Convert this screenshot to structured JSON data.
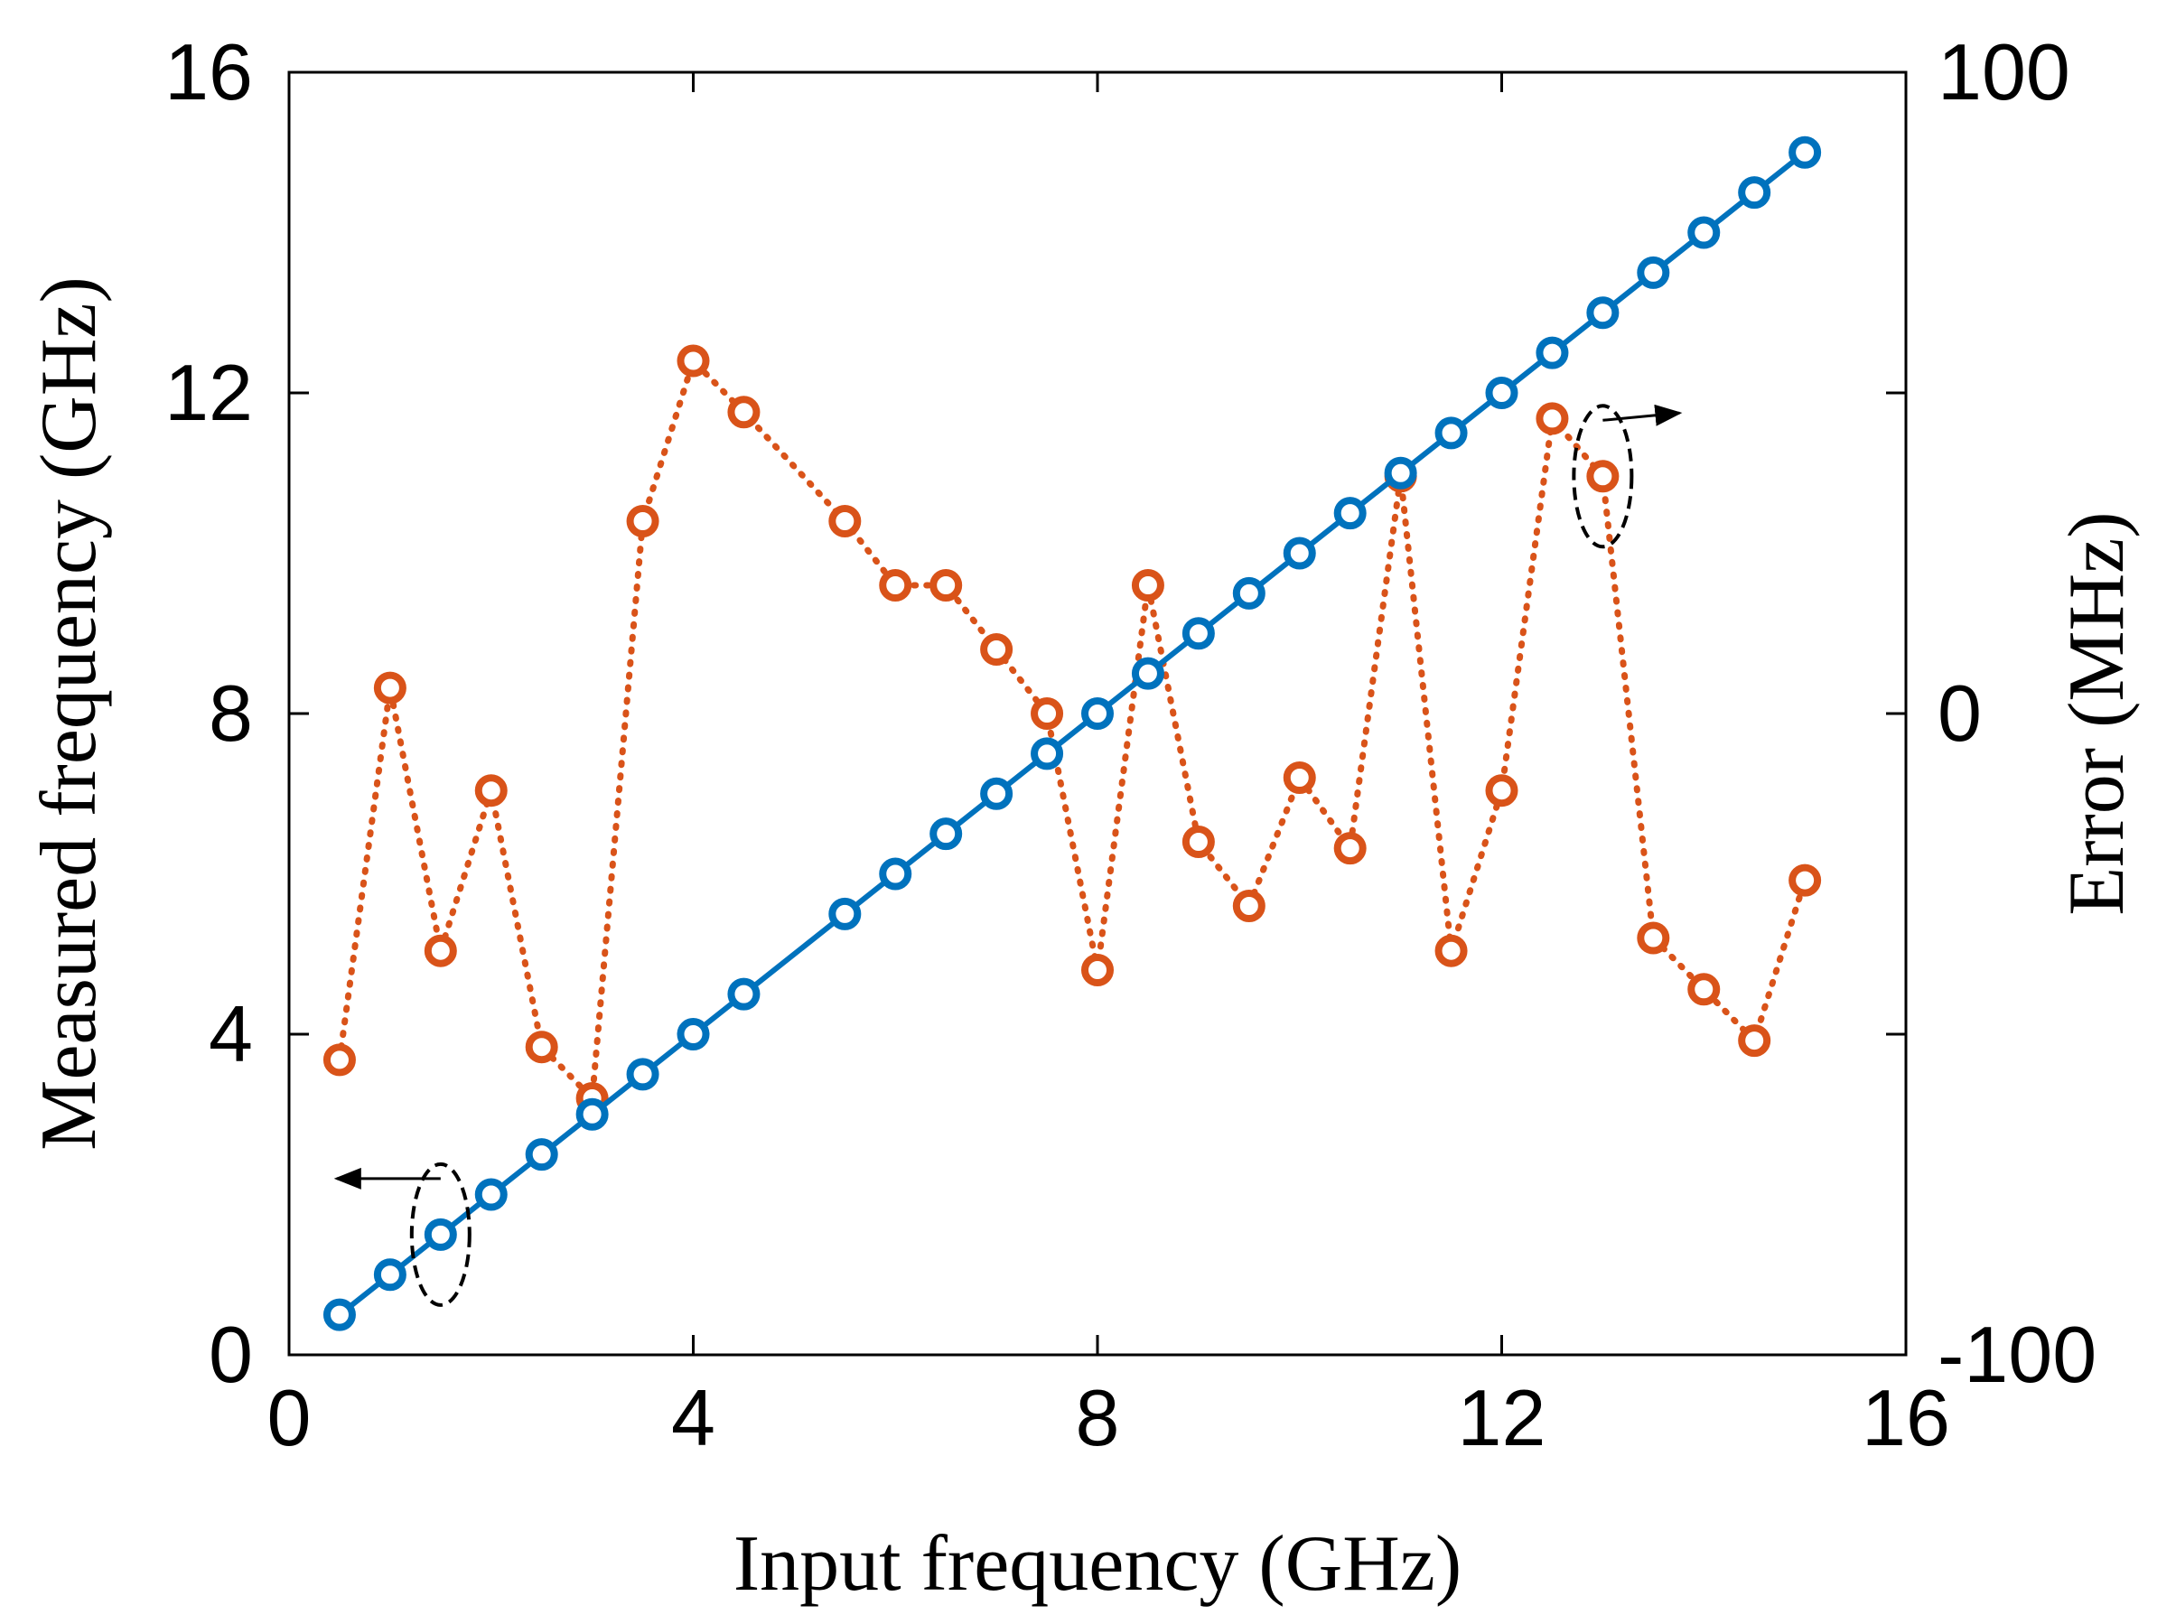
{
  "chart_data": {
    "type": "line",
    "title": "",
    "xlabel": "Input frequency (GHz)",
    "ylabel": "Measured frequency (GHz)",
    "y2label": "Error (MHz)",
    "xlim": [
      0,
      16
    ],
    "ylim": [
      0,
      16
    ],
    "y2lim": [
      -100,
      100
    ],
    "xticks": [
      "0",
      "4",
      "8",
      "12",
      "16"
    ],
    "yticks": [
      "0",
      "4",
      "8",
      "12",
      "16"
    ],
    "y2ticks": [
      "-100",
      "0",
      "100"
    ],
    "grid": false,
    "series": [
      {
        "name": "Measured frequency",
        "axis": "left",
        "color": "#0072bd",
        "line_style": "solid",
        "marker": "circle",
        "x": [
          0.5,
          1,
          1.5,
          2,
          2.5,
          3,
          3.5,
          4,
          4.5,
          5.5,
          6,
          6.5,
          7,
          7.5,
          8,
          8.5,
          9,
          9.5,
          10,
          10.5,
          11,
          11.5,
          12,
          12.5,
          13,
          13.5,
          14,
          14.5,
          15
        ],
        "y": [
          0.5,
          1,
          1.5,
          2,
          2.5,
          3,
          3.5,
          4,
          4.5,
          5.5,
          6,
          6.5,
          7,
          7.5,
          8,
          8.5,
          9,
          9.5,
          10,
          10.5,
          11,
          11.5,
          12,
          12.5,
          13,
          13.5,
          14,
          14.5,
          15
        ]
      },
      {
        "name": "Error",
        "axis": "right",
        "color": "#d95319",
        "line_style": "dotted",
        "marker": "circle",
        "x": [
          0.5,
          1,
          1.5,
          2,
          2.5,
          3,
          3.5,
          4,
          4.5,
          5.5,
          6,
          6.5,
          7,
          7.5,
          8,
          8.5,
          9,
          9.5,
          10,
          10.5,
          11,
          11.5,
          12,
          12.5,
          13,
          13.5,
          14,
          14.5,
          15
        ],
        "y": [
          -54,
          4,
          -37,
          -12,
          -52,
          -60,
          30,
          55,
          47,
          30,
          20,
          20,
          10,
          0,
          -40,
          20,
          -20,
          -30,
          -10,
          -21,
          37,
          -37,
          -12,
          46,
          37,
          -35,
          -43,
          -51,
          -26
        ]
      }
    ],
    "annotations": [
      {
        "type": "ellipse-arrow",
        "target_series": "Measured frequency",
        "arrow_direction": "left",
        "meaning": "left axis"
      },
      {
        "type": "ellipse-arrow",
        "target_series": "Error",
        "arrow_direction": "right",
        "meaning": "right axis"
      }
    ]
  }
}
